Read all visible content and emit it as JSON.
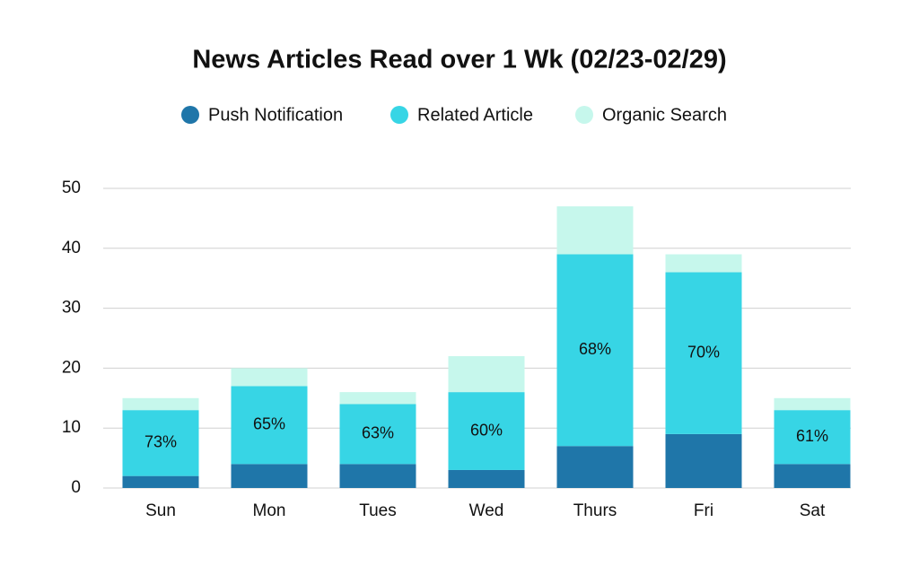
{
  "chart_data": {
    "type": "stacked_bar",
    "title": "News Articles Read over 1 Wk (02/23-02/29)",
    "categories": [
      "Sun",
      "Mon",
      "Tues",
      "Wed",
      "Thurs",
      "Fri",
      "Sat"
    ],
    "series": [
      {
        "name": "Push Notification",
        "color": "#1f76a9",
        "values": [
          2,
          4,
          4,
          3,
          7,
          9,
          4
        ]
      },
      {
        "name": "Related Article",
        "color": "#37d5e5",
        "values": [
          11,
          13,
          10,
          13,
          32,
          27,
          9
        ]
      },
      {
        "name": "Organic Search",
        "color": "#c6f7ec",
        "values": [
          2,
          3,
          2,
          6,
          8,
          3,
          2
        ]
      }
    ],
    "annotations": [
      "73%",
      "65%",
      "63%",
      "60%",
      "68%",
      "70%",
      "61%"
    ],
    "ylim": [
      0,
      50
    ],
    "yticks": [
      0,
      10,
      20,
      30,
      40,
      50
    ],
    "grid": true,
    "legend": "top"
  }
}
